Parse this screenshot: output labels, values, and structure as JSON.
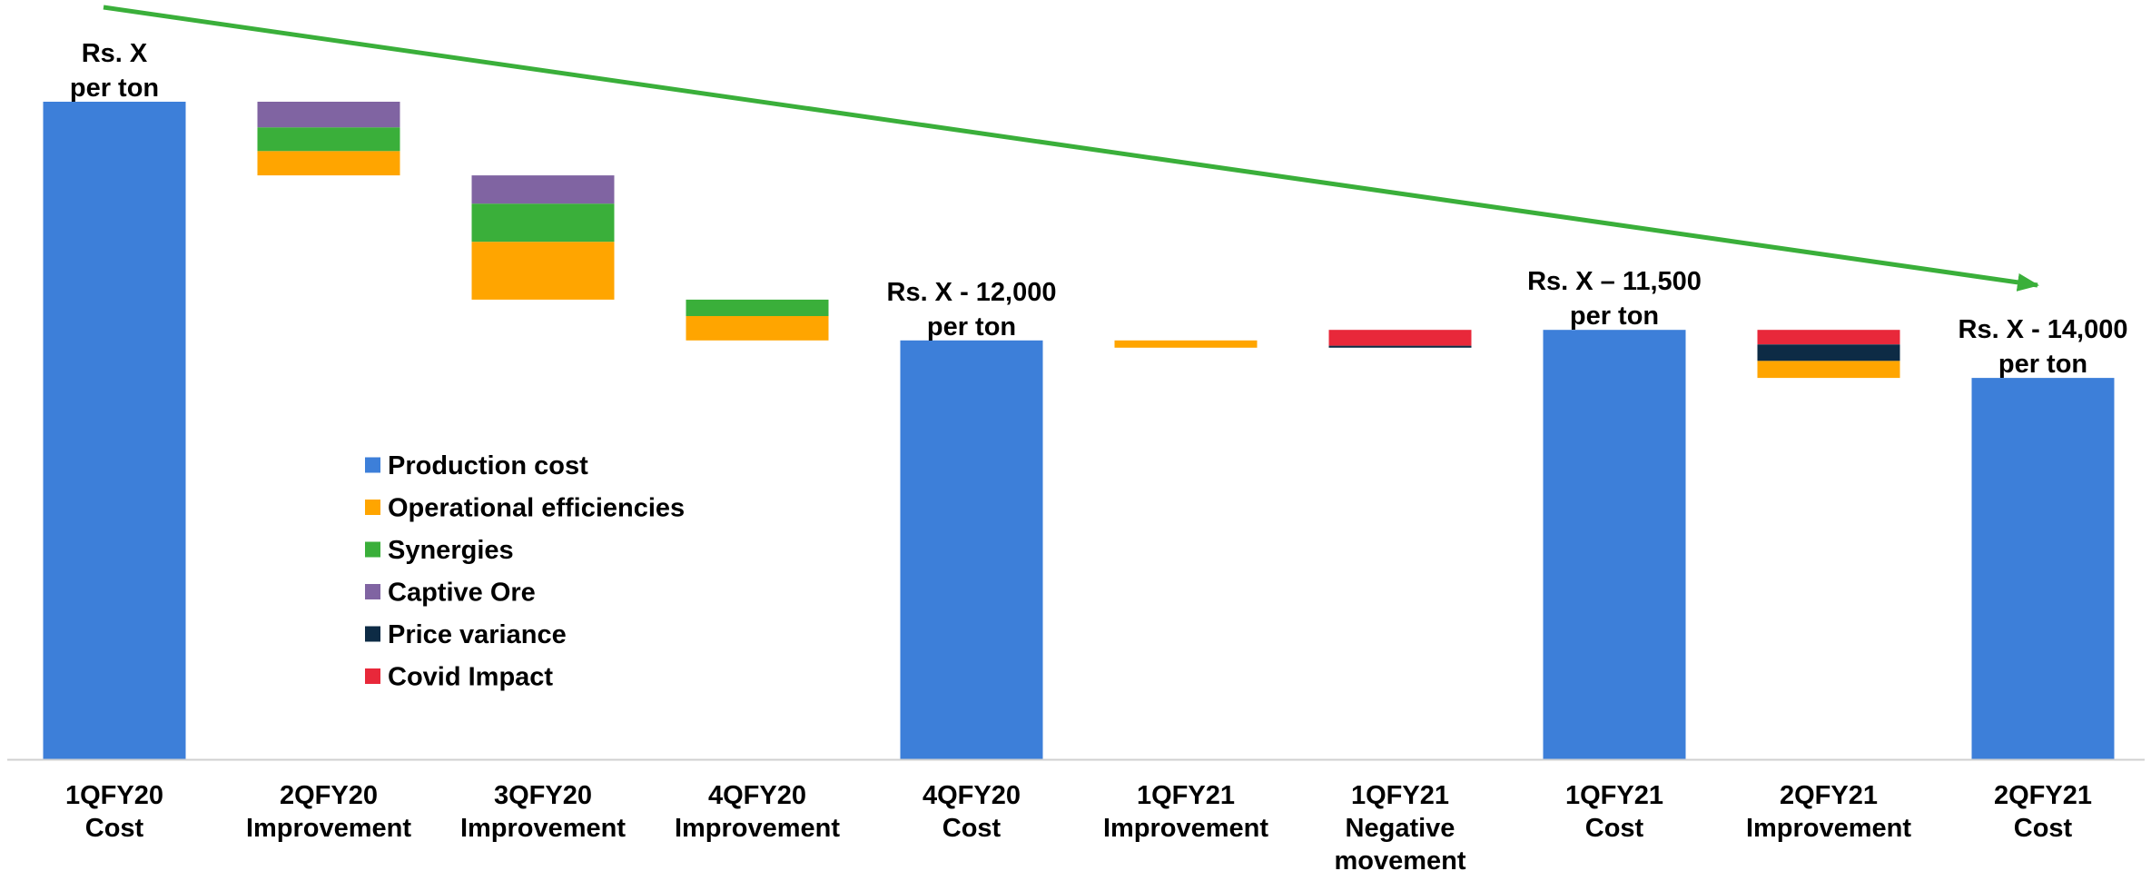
{
  "chart_data": {
    "type": "bar",
    "subtype": "waterfall",
    "categories": [
      [
        "1QFY20",
        "Cost"
      ],
      [
        "2QFY20",
        "Improvement"
      ],
      [
        "3QFY20",
        "Improvement"
      ],
      [
        "4QFY20",
        "Improvement"
      ],
      [
        "4QFY20",
        "Cost"
      ],
      [
        "1QFY21",
        "Improvement"
      ],
      [
        "1QFY21",
        "Negative",
        "movement"
      ],
      [
        "1QFY21",
        "Cost"
      ],
      [
        "2QFY21",
        "Improvement"
      ],
      [
        "2QFY21",
        "Cost"
      ]
    ],
    "ylim": [
      0,
      100
    ],
    "axis_values_shown": false,
    "grid": false,
    "series": [
      {
        "name": "Production cost",
        "color": "#3D7FD9"
      },
      {
        "name": "Operational efficiencies",
        "color": "#FFA500"
      },
      {
        "name": "Synergies",
        "color": "#3AAF3A"
      },
      {
        "name": "Captive Ore",
        "color": "#8064A2"
      },
      {
        "name": "Price variance",
        "color": "#0D2B45"
      },
      {
        "name": "Covid Impact",
        "color": "#E8283A"
      }
    ],
    "bars": [
      {
        "segments": [
          {
            "series": 0,
            "from": 0,
            "to": 100
          }
        ]
      },
      {
        "segments": [
          {
            "series": 1,
            "from": 88.8,
            "to": 92.5
          },
          {
            "series": 2,
            "from": 92.5,
            "to": 96.1
          },
          {
            "series": 3,
            "from": 96.1,
            "to": 100
          }
        ]
      },
      {
        "segments": [
          {
            "series": 1,
            "from": 69.9,
            "to": 78.7
          },
          {
            "series": 2,
            "from": 78.7,
            "to": 84.5
          },
          {
            "series": 3,
            "from": 84.5,
            "to": 88.8
          }
        ]
      },
      {
        "segments": [
          {
            "series": 1,
            "from": 63.7,
            "to": 67.4
          },
          {
            "series": 2,
            "from": 67.4,
            "to": 69.9
          }
        ]
      },
      {
        "segments": [
          {
            "series": 0,
            "from": 0,
            "to": 63.7
          }
        ]
      },
      {
        "segments": [
          {
            "series": 1,
            "from": 62.6,
            "to": 63.7
          }
        ]
      },
      {
        "segments": [
          {
            "series": 4,
            "from": 62.6,
            "to": 62.9
          },
          {
            "series": 5,
            "from": 62.9,
            "to": 65.3
          }
        ]
      },
      {
        "segments": [
          {
            "series": 0,
            "from": 0,
            "to": 65.3
          }
        ]
      },
      {
        "segments": [
          {
            "series": 1,
            "from": 58.0,
            "to": 60.6
          },
          {
            "series": 4,
            "from": 60.6,
            "to": 63.1
          },
          {
            "series": 5,
            "from": 63.1,
            "to": 65.3
          }
        ]
      },
      {
        "segments": [
          {
            "series": 0,
            "from": 0,
            "to": 58.0
          }
        ]
      }
    ],
    "bar_labels": [
      {
        "bar": 0,
        "lines": [
          "Rs. X",
          "per ton"
        ]
      },
      {
        "bar": 4,
        "lines": [
          "Rs. X - 12,000",
          "per ton"
        ]
      },
      {
        "bar": 7,
        "lines": [
          "Rs. X – 11,500",
          "per ton"
        ]
      },
      {
        "bar": 9,
        "lines": [
          "Rs. X - 14,000",
          "per ton"
        ]
      }
    ],
    "trend_arrow": {
      "color": "#3AAF3A",
      "from": [
        0,
        114
      ],
      "to": [
        9,
        72
      ]
    },
    "legend": {
      "placement": "inside-left-middle"
    }
  }
}
